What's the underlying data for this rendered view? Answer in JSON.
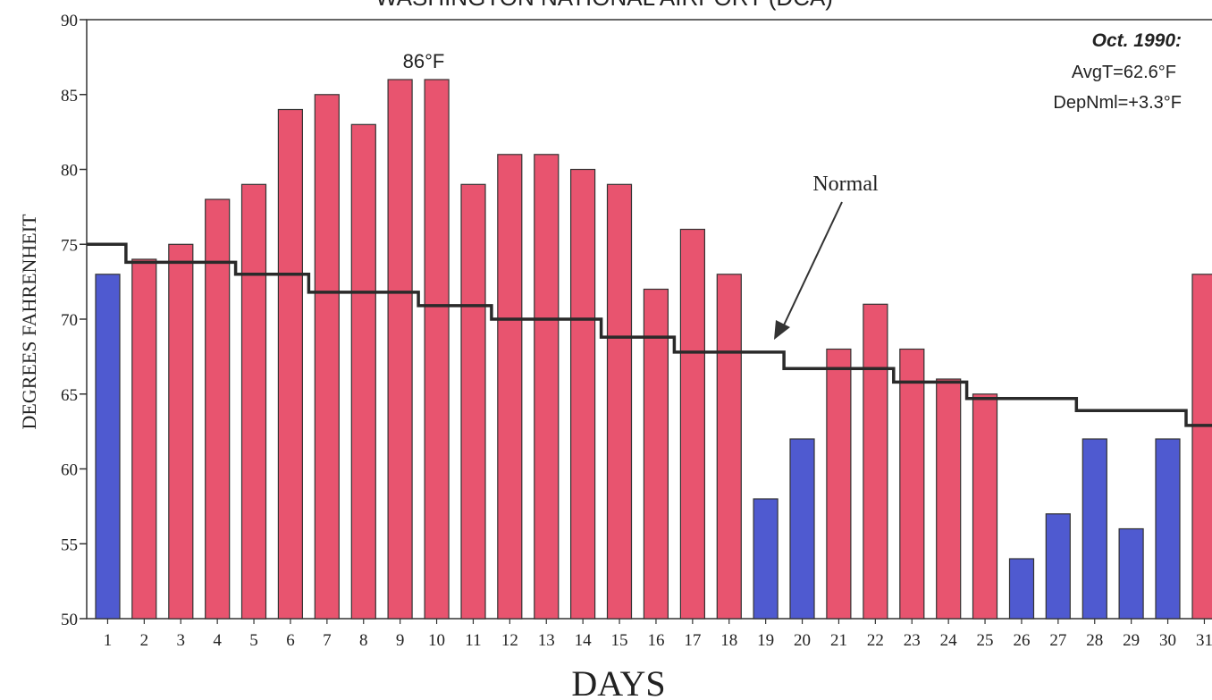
{
  "chart_data": {
    "type": "bar",
    "title": "WASHINGTON NATIONAL AIRPORT (DCA)",
    "xlabel": "DAYS",
    "ylabel": "DEGREES FAHRENHEIT",
    "ylim": [
      50,
      90
    ],
    "yticks": [
      50,
      55,
      60,
      65,
      70,
      75,
      80,
      85,
      90
    ],
    "categories": [
      "1",
      "2",
      "3",
      "4",
      "5",
      "6",
      "7",
      "8",
      "9",
      "10",
      "11",
      "12",
      "13",
      "14",
      "15",
      "16",
      "17",
      "18",
      "19",
      "20",
      "21",
      "22",
      "23",
      "24",
      "25",
      "26",
      "27",
      "28",
      "29",
      "30",
      "31"
    ],
    "values": [
      73,
      74,
      75,
      78,
      79,
      84,
      85,
      83,
      86,
      86,
      79,
      81,
      81,
      80,
      79,
      72,
      76,
      73,
      58,
      62,
      68,
      71,
      68,
      66,
      65,
      54,
      57,
      62,
      56,
      62,
      73
    ],
    "colors": {
      "above_normal": "#e8546f",
      "below_normal": "#4f5ad0",
      "normal_line": "#2a2a2a"
    },
    "normal_series": {
      "name": "Normal",
      "values": [
        75,
        73.8,
        73.8,
        73.8,
        73,
        73,
        71.8,
        71.8,
        71.8,
        70.9,
        70.9,
        70,
        70,
        70,
        68.8,
        68.8,
        67.8,
        67.8,
        67.8,
        66.7,
        66.7,
        66.7,
        65.8,
        65.8,
        64.7,
        64.7,
        64.7,
        63.9,
        63.9,
        63.9,
        62.9
      ]
    },
    "annotations": {
      "peak_label": "86°F",
      "period": "Oct. 1990:",
      "avg_temp": "AvgT=62.6°F",
      "departure": "DepNml=+3.3°F",
      "normal_label": "Normal"
    },
    "grid": false,
    "legend": "none"
  }
}
